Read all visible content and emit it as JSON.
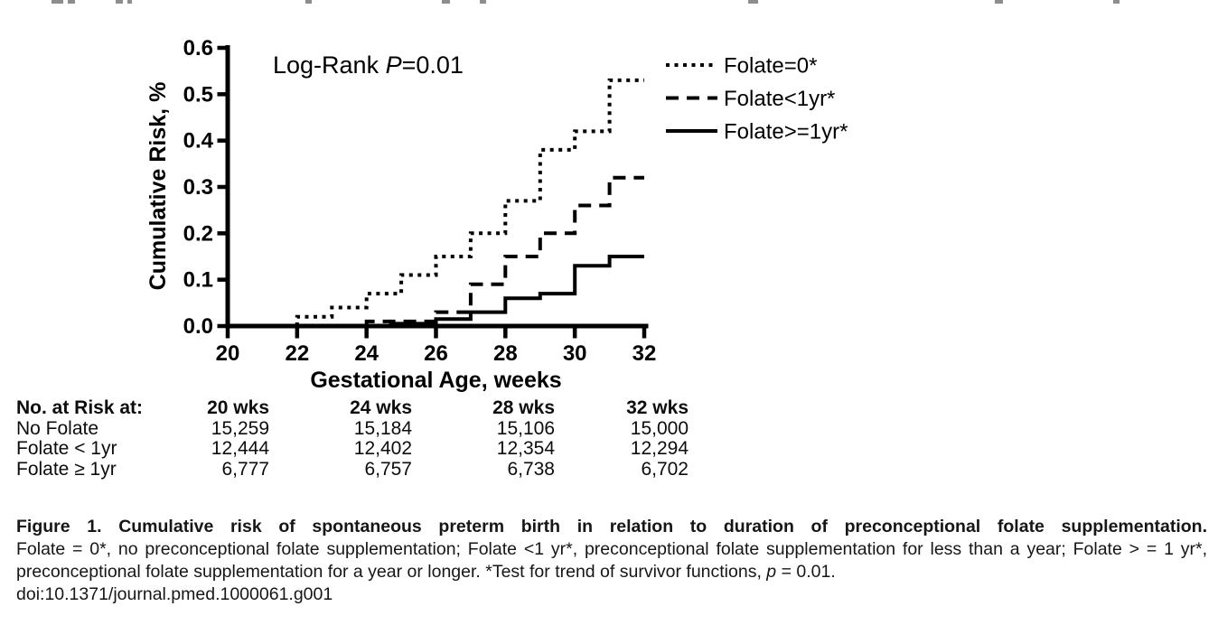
{
  "chart_data": {
    "type": "line",
    "subtype": "step-survival",
    "title": "",
    "annotation": {
      "prefix": "Log-Rank ",
      "italic": "P",
      "suffix": "=0.01"
    },
    "xlabel": "Gestational Age, weeks",
    "ylabel": "Cumulative Risk, %",
    "xlim": [
      20,
      32
    ],
    "ylim": [
      0,
      0.6
    ],
    "grid": false,
    "legend_position": "top-right-outside",
    "x_ticks": [
      {
        "value": 20,
        "label": "20"
      },
      {
        "value": 22,
        "label": "22"
      },
      {
        "value": 24,
        "label": "24"
      },
      {
        "value": 26,
        "label": "26"
      },
      {
        "value": 28,
        "label": "28"
      },
      {
        "value": 30,
        "label": "30"
      },
      {
        "value": 32,
        "label": "32"
      }
    ],
    "y_ticks": [
      {
        "value": 0.0,
        "label": "0.0"
      },
      {
        "value": 0.1,
        "label": "0.1"
      },
      {
        "value": 0.2,
        "label": "0.2"
      },
      {
        "value": 0.3,
        "label": "0.3"
      },
      {
        "value": 0.4,
        "label": "0.4"
      },
      {
        "value": 0.5,
        "label": "0.5"
      },
      {
        "value": 0.6,
        "label": "0.6"
      }
    ],
    "series": [
      {
        "name": "Folate=0*",
        "line_style": "dotted",
        "color": "#000000",
        "steps": [
          [
            22,
            0.02
          ],
          [
            23,
            0.04
          ],
          [
            24,
            0.07
          ],
          [
            25,
            0.11
          ],
          [
            26,
            0.15
          ],
          [
            27,
            0.2
          ],
          [
            28,
            0.27
          ],
          [
            29,
            0.38
          ],
          [
            30,
            0.42
          ],
          [
            31,
            0.53
          ]
        ],
        "x_end": 32
      },
      {
        "name": "Folate<1yr*",
        "line_style": "dashed",
        "color": "#000000",
        "steps": [
          [
            24,
            0.01
          ],
          [
            26,
            0.03
          ],
          [
            27,
            0.09
          ],
          [
            28,
            0.15
          ],
          [
            29,
            0.2
          ],
          [
            30,
            0.26
          ],
          [
            31,
            0.32
          ]
        ],
        "x_end": 32
      },
      {
        "name": "Folate>=1yr*",
        "line_style": "solid",
        "color": "#000000",
        "steps": [
          [
            24.7,
            0.005
          ],
          [
            26,
            0.015
          ],
          [
            27,
            0.03
          ],
          [
            28,
            0.06
          ],
          [
            29,
            0.07
          ],
          [
            30,
            0.13
          ],
          [
            31,
            0.15
          ]
        ],
        "x_end": 32
      }
    ]
  },
  "risk_table": {
    "title": "No. at Risk at:",
    "columns": [
      "20 wks",
      "24 wks",
      "28 wks",
      "32 wks"
    ],
    "rows": [
      {
        "label": "No Folate",
        "values": [
          "15,259",
          "15,184",
          "15,106",
          "15,000"
        ]
      },
      {
        "label": "Folate < 1yr",
        "values": [
          "12,444",
          "12,402",
          "12,354",
          "12,294"
        ]
      },
      {
        "label": "Folate ≥ 1yr",
        "values": [
          "6,777",
          "6,757",
          "6,738",
          "6,702"
        ]
      }
    ]
  },
  "caption": {
    "line1": "Figure 1. Cumulative risk of spontaneous preterm birth in relation to duration of preconceptional folate supplementation.",
    "line2": "Folate = 0*, no preconceptional folate supplementation; Folate <1 yr*, preconceptional folate supplementation for less than a year; Folate > = 1 yr*,",
    "line3_pre": "preconceptional folate supplementation for a year or longer. *Test for trend of survivor functions, ",
    "line3_italic": "p",
    "line3_post": " = 0.01.",
    "doi": "doi:10.1371/journal.pmed.1000061.g001"
  }
}
